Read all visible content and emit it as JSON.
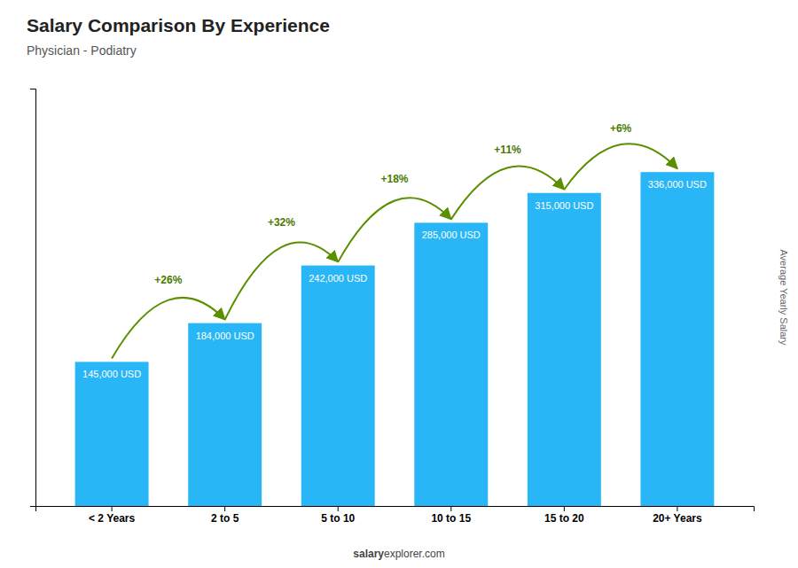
{
  "chart_data": {
    "type": "bar",
    "title": "Salary Comparison By Experience",
    "subtitle": "Physician - Podiatry",
    "ylabel": "Average Yearly Salary",
    "categories": [
      "< 2 Years",
      "2 to 5",
      "5 to 10",
      "10 to 15",
      "15 to 20",
      "20+ Years"
    ],
    "values": [
      145000,
      184000,
      242000,
      285000,
      315000,
      336000
    ],
    "value_labels": [
      "145,000 USD",
      "184,000 USD",
      "242,000 USD",
      "285,000 USD",
      "315,000 USD",
      "336,000 USD"
    ],
    "data_labels": true,
    "annotations": [
      "+26%",
      "+32%",
      "+18%",
      "+11%",
      "+6%"
    ],
    "watermark": [
      "salary",
      "explorer.com"
    ],
    "color": "#29b6f6",
    "ylim": [
      0,
      420000
    ],
    "tick_labels": "x",
    "grid": false
  }
}
